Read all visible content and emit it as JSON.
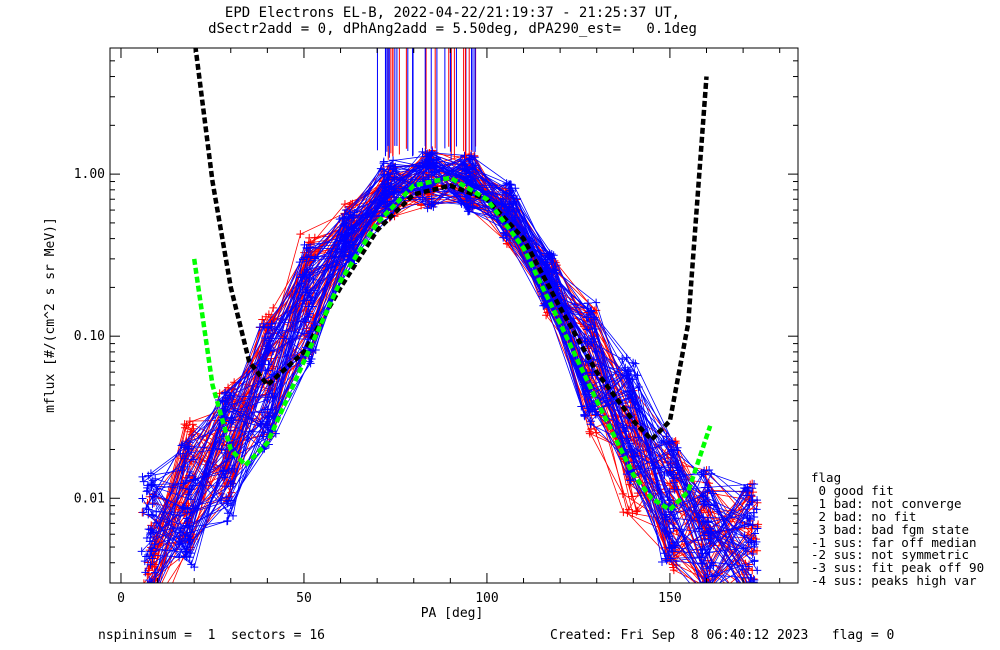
{
  "title_line1": "EPD Electrons EL-B, 2022-04-22/21:19:37 - 21:25:37 UT,",
  "title_line2": "dSectr2add = 0, dPhAng2add = 5.50deg, dPA290_est=   0.1deg",
  "footer_left": "nspininsum =  1  sectors = 16",
  "footer_right": "Created: Fri Sep  8 06:40:12 2023   flag = 0",
  "legend": {
    "title": "flag",
    "items": [
      " 0 good fit",
      " 1 bad: not converge",
      " 2 bad: no fit",
      " 3 bad: bad fgm state",
      "-1 sus: far off median",
      "-2 sus: not symmetric",
      "-3 sus: fit peak off 90",
      "-4 sus: peaks high var"
    ]
  },
  "colors": {
    "series_a": "#ff0000",
    "series_b": "#0000ff",
    "fit_a": "#00ff00",
    "fit_b": "#000000"
  },
  "chart_data": {
    "type": "line",
    "xlabel": "PA [deg]",
    "ylabel": "mflux [#/(cm^2 s sr MeV)]",
    "xlim": [
      -3,
      185
    ],
    "ylim": [
      0.003,
      6
    ],
    "yscale": "log",
    "x_ticks": [
      0,
      50,
      100,
      150
    ],
    "x_tick_labels": [
      "0",
      "50",
      "100",
      "150"
    ],
    "y_ticks": [
      0.01,
      0.1,
      1.0
    ],
    "y_tick_labels": [
      "0.01",
      "0.10",
      "1.00"
    ],
    "sector_pa": [
      8,
      18,
      29,
      40,
      51,
      62,
      73,
      84,
      95,
      106,
      117,
      128,
      139,
      150,
      160,
      172
    ],
    "red_spin_median": [
      0.0045,
      0.012,
      0.022,
      0.06,
      0.17,
      0.45,
      0.78,
      0.95,
      0.9,
      0.55,
      0.2,
      0.06,
      0.02,
      0.009,
      0.006,
      0.005
    ],
    "blue_spin_median": [
      0.006,
      0.009,
      0.018,
      0.05,
      0.15,
      0.42,
      0.82,
      0.92,
      0.88,
      0.6,
      0.22,
      0.07,
      0.03,
      0.01,
      0.006,
      0.005
    ],
    "fit_green": {
      "name": "",
      "x": [
        20,
        25,
        30,
        34,
        40,
        50,
        60,
        70,
        80,
        90,
        100,
        110,
        120,
        130,
        140,
        145,
        150,
        155,
        161
      ],
      "y": [
        0.3,
        0.05,
        0.02,
        0.016,
        0.022,
        0.07,
        0.22,
        0.5,
        0.85,
        0.95,
        0.7,
        0.35,
        0.12,
        0.04,
        0.014,
        0.01,
        0.0085,
        0.011,
        0.028
      ]
    },
    "fit_black": {
      "name": "",
      "x": [
        20,
        25,
        30,
        35,
        40,
        50,
        60,
        70,
        80,
        90,
        100,
        110,
        120,
        130,
        140,
        145,
        150,
        155,
        160
      ],
      "y": [
        7,
        0.9,
        0.2,
        0.07,
        0.05,
        0.08,
        0.2,
        0.45,
        0.75,
        0.85,
        0.7,
        0.4,
        0.15,
        0.06,
        0.03,
        0.023,
        0.03,
        0.12,
        4
      ]
    }
  }
}
